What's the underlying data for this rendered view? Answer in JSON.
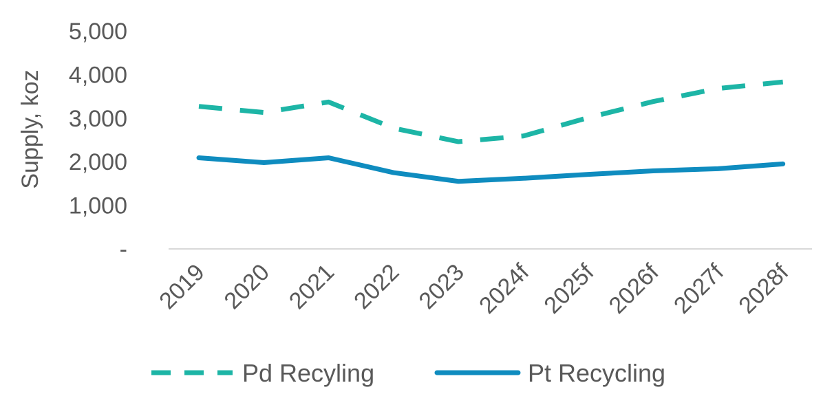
{
  "chart_data": {
    "type": "line",
    "title": "",
    "xlabel": "",
    "ylabel": "Supply, koz",
    "ylim": [
      0,
      5000
    ],
    "y_ticks": [
      0,
      1000,
      2000,
      3000,
      4000,
      5000
    ],
    "y_tick_labels": [
      "-",
      "1,000",
      "2,000",
      "3,000",
      "4,000",
      "5,000"
    ],
    "categories": [
      "2019",
      "2020",
      "2021",
      "2022",
      "2023",
      "2024f",
      "2025f",
      "2026f",
      "2027f",
      "2028f"
    ],
    "series": [
      {
        "name": "Pd Recyling",
        "style": "dashed",
        "color": "#1db5a6",
        "values": [
          3270,
          3130,
          3370,
          2770,
          2460,
          2590,
          3010,
          3380,
          3680,
          3830
        ]
      },
      {
        "name": "Pt Recycling",
        "style": "solid",
        "color": "#0f8cbf",
        "values": [
          2090,
          1980,
          2090,
          1750,
          1550,
          1620,
          1710,
          1790,
          1840,
          1950
        ]
      }
    ],
    "legend_position": "bottom",
    "grid": false,
    "axis_line_color": "#d9d9d9"
  }
}
